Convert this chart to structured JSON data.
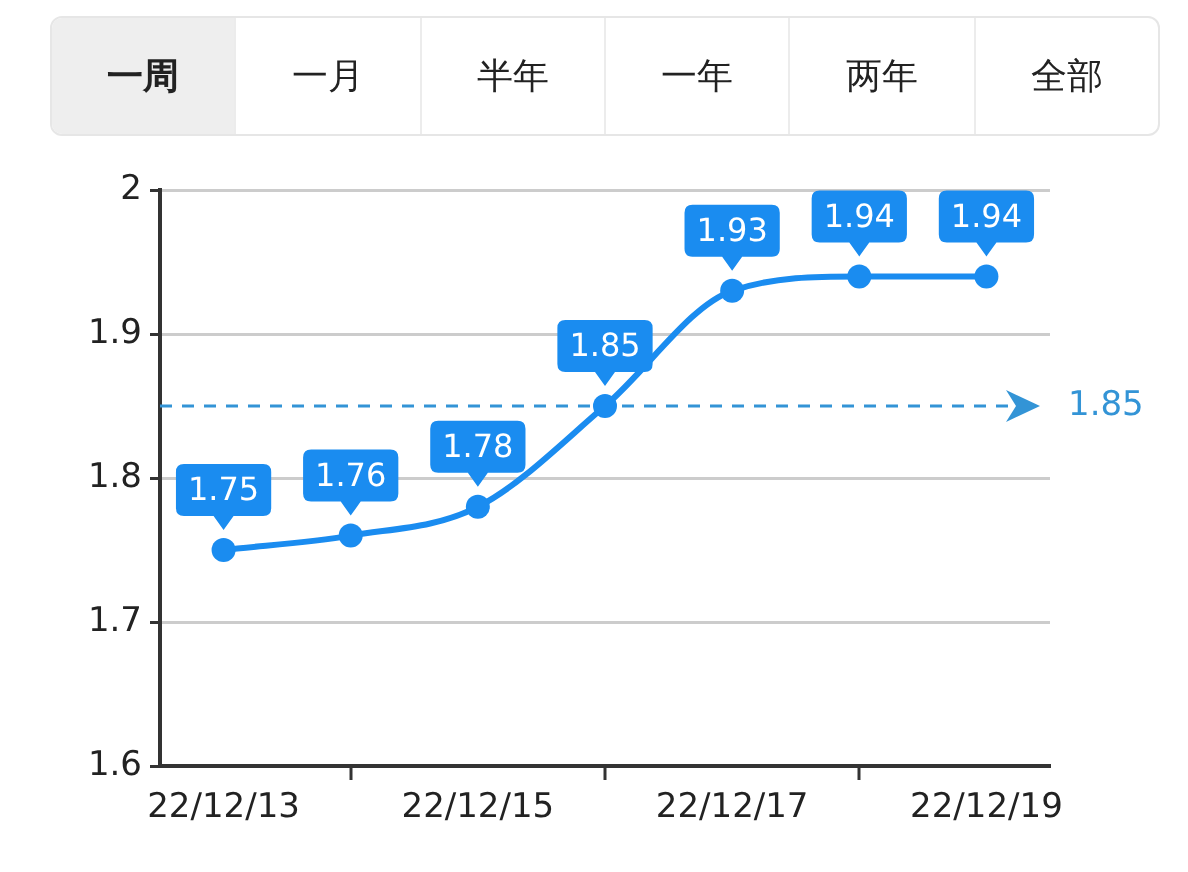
{
  "chart_data": {
    "type": "line",
    "annotations": [
      "一周",
      "一月",
      "半年",
      "一年",
      "两年",
      "全部"
    ],
    "categories": [
      "22/12/13",
      null,
      "22/12/15",
      null,
      "22/12/17",
      null,
      "22/12/19"
    ],
    "values": [
      1.75,
      1.76,
      1.78,
      1.85,
      1.93,
      1.94,
      1.94
    ],
    "color": "#1a8cf0",
    "ylim": [
      1.6,
      2
    ],
    "yticks": [
      1.6,
      1.7,
      1.8,
      1.9,
      2
    ],
    "grid": "y",
    "marker": "circle",
    "line_style": "solid",
    "data_labels": true,
    "ref_lines": [
      {
        "axis": "y",
        "value": 1.85,
        "label": "1.85",
        "color": "#3394d6",
        "line_style": "dashed"
      }
    ]
  }
}
